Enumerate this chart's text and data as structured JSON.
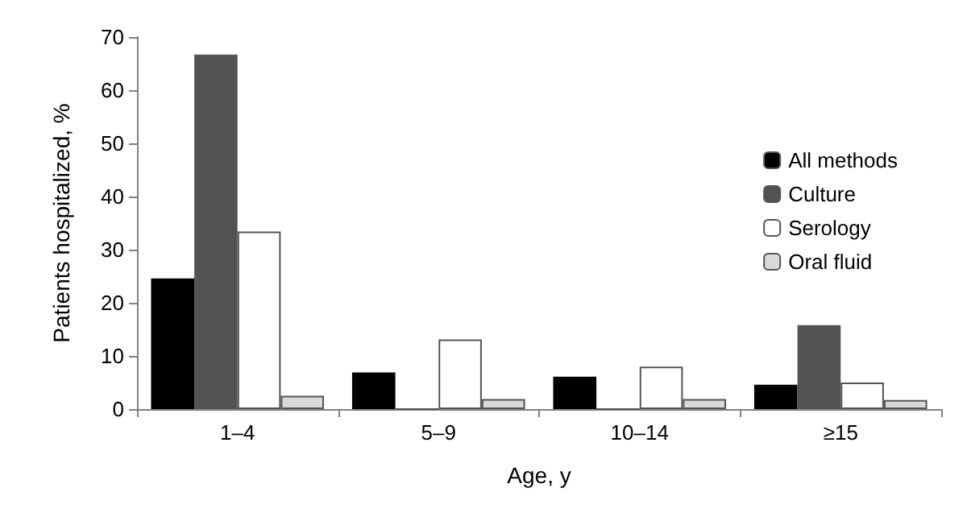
{
  "chart_data": {
    "type": "bar",
    "xlabel": "Age, y",
    "ylabel": "Patients hospitalized, %",
    "categories": [
      "1–4",
      "5–9",
      "10–14",
      "≥15"
    ],
    "series": [
      {
        "name": "All methods",
        "color": "#000000",
        "values": [
          24.6,
          6.9,
          6.1,
          4.6
        ]
      },
      {
        "name": "Culture",
        "color": "#525252",
        "values": [
          66.7,
          0,
          0,
          15.8
        ]
      },
      {
        "name": "Serology",
        "color": "#ffffff",
        "values": [
          33.4,
          13.1,
          8.0,
          5.0
        ]
      },
      {
        "name": "Oral fluid",
        "color": "#d9d9d9",
        "values": [
          2.5,
          1.9,
          1.9,
          1.7
        ]
      }
    ],
    "ylim": [
      0,
      70
    ],
    "yticks": [
      0,
      10,
      20,
      30,
      40,
      50,
      60,
      70
    ],
    "grid": false,
    "legend": "top right"
  }
}
